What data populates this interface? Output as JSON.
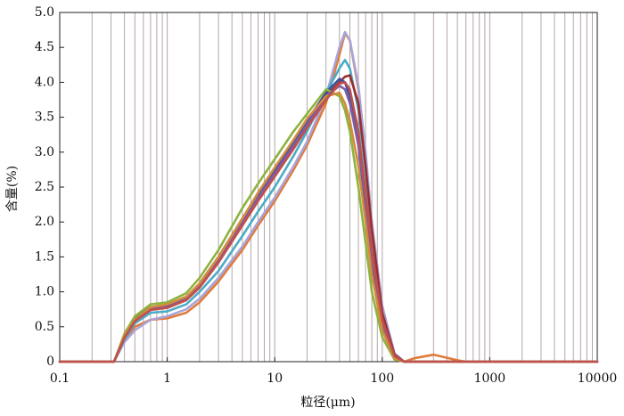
{
  "chart_data": {
    "type": "line",
    "xlabel": "粒径(μm)",
    "ylabel": "含量(%)",
    "log_x": true,
    "xlim": [
      0.1,
      10000
    ],
    "xticks": [
      0.1,
      1,
      10,
      100,
      1000,
      10000
    ],
    "xgrid": [
      0.2,
      0.3,
      0.4,
      0.5,
      0.6,
      0.7,
      0.8,
      0.9,
      1,
      2,
      3,
      4,
      5,
      6,
      7,
      8,
      9,
      10,
      20,
      30,
      40,
      50,
      60,
      70,
      80,
      90,
      100,
      200,
      300,
      400,
      500,
      600,
      700,
      800,
      900,
      1000,
      2000,
      3000,
      4000,
      5000,
      6000,
      7000,
      8000,
      9000
    ],
    "grid_color": "#b3a6a6",
    "ylim": [
      0,
      5
    ],
    "yticks": [
      0,
      0.5,
      {
        "value": 1,
        "label": "1.0"
      },
      1.5,
      {
        "value": 2,
        "label": "2.0"
      },
      2.5,
      {
        "value": 3,
        "label": "3.0"
      },
      3.5,
      {
        "value": 4,
        "label": "4.0"
      },
      4.5,
      {
        "value": 5,
        "label": "5.0"
      }
    ],
    "x": [
      0.1,
      0.32,
      0.4,
      0.5,
      0.7,
      1,
      1.5,
      2,
      3,
      5,
      7,
      10,
      15,
      20,
      30,
      40,
      45,
      50,
      60,
      70,
      80,
      100,
      130,
      160,
      200,
      300,
      500,
      600,
      10000
    ],
    "series": [
      {
        "color": "#e07b39",
        "values": [
          0,
          0,
          0.3,
          0.5,
          0.6,
          0.62,
          0.7,
          0.85,
          1.15,
          1.6,
          1.95,
          2.3,
          2.75,
          3.1,
          3.7,
          4.4,
          4.7,
          4.6,
          3.9,
          2.9,
          1.9,
          0.7,
          0.1,
          0,
          0.05,
          0.1,
          0.02,
          0,
          0
        ]
      },
      {
        "color": "#a9a4d8",
        "values": [
          0,
          0,
          0.28,
          0.45,
          0.6,
          0.65,
          0.75,
          0.9,
          1.2,
          1.65,
          2.0,
          2.35,
          2.8,
          3.15,
          3.8,
          4.5,
          4.72,
          4.6,
          3.95,
          3.0,
          2.0,
          0.8,
          0.12,
          0,
          0,
          0,
          0,
          0,
          0
        ]
      },
      {
        "color": "#4bacc6",
        "values": [
          0,
          0,
          0.32,
          0.55,
          0.7,
          0.72,
          0.82,
          1.0,
          1.3,
          1.8,
          2.15,
          2.5,
          2.95,
          3.3,
          3.85,
          4.2,
          4.32,
          4.2,
          3.6,
          2.7,
          1.8,
          0.7,
          0.1,
          0,
          0,
          0,
          0,
          0,
          0
        ]
      },
      {
        "color": "#9b2d30",
        "values": [
          0,
          0,
          0.35,
          0.6,
          0.75,
          0.78,
          0.9,
          1.1,
          1.45,
          2.0,
          2.35,
          2.7,
          3.1,
          3.4,
          3.8,
          4.0,
          4.08,
          4.1,
          3.7,
          2.8,
          1.9,
          0.7,
          0.1,
          0,
          0,
          0,
          0,
          0,
          0
        ]
      },
      {
        "color": "#3b4f9e",
        "values": [
          0,
          0,
          0.38,
          0.62,
          0.78,
          0.8,
          0.92,
          1.12,
          1.5,
          2.05,
          2.4,
          2.75,
          3.15,
          3.45,
          3.85,
          4.05,
          4.0,
          3.8,
          3.1,
          2.2,
          1.4,
          0.5,
          0.05,
          0,
          0,
          0,
          0,
          0,
          0
        ]
      },
      {
        "color": "#8db33f",
        "values": [
          0,
          0,
          0.4,
          0.65,
          0.82,
          0.85,
          0.98,
          1.2,
          1.6,
          2.2,
          2.55,
          2.9,
          3.3,
          3.55,
          3.9,
          3.8,
          3.6,
          3.3,
          2.5,
          1.7,
          1.0,
          0.35,
          0.03,
          0,
          0,
          0,
          0,
          0,
          0
        ]
      },
      {
        "color": "#7b5ea7",
        "values": [
          0,
          0,
          0.36,
          0.6,
          0.76,
          0.78,
          0.9,
          1.08,
          1.45,
          2.0,
          2.35,
          2.7,
          3.1,
          3.4,
          3.8,
          3.95,
          3.9,
          3.7,
          3.1,
          2.3,
          1.5,
          0.55,
          0.07,
          0,
          0,
          0,
          0,
          0,
          0
        ]
      },
      {
        "color": "#d68a3c",
        "values": [
          0,
          0,
          0.37,
          0.6,
          0.78,
          0.82,
          0.93,
          1.12,
          1.5,
          2.05,
          2.42,
          2.78,
          3.18,
          3.48,
          3.8,
          3.85,
          3.7,
          3.45,
          2.8,
          2.0,
          1.25,
          0.45,
          0.05,
          0,
          0,
          0,
          0,
          0,
          0
        ]
      },
      {
        "color": "#c0504d",
        "values": [
          0,
          0,
          0.34,
          0.58,
          0.74,
          0.77,
          0.88,
          1.06,
          1.42,
          1.95,
          2.3,
          2.65,
          3.05,
          3.35,
          3.75,
          3.98,
          4.0,
          3.9,
          3.3,
          2.4,
          1.6,
          0.6,
          0.08,
          0,
          0,
          0,
          0,
          0,
          0
        ]
      }
    ]
  }
}
